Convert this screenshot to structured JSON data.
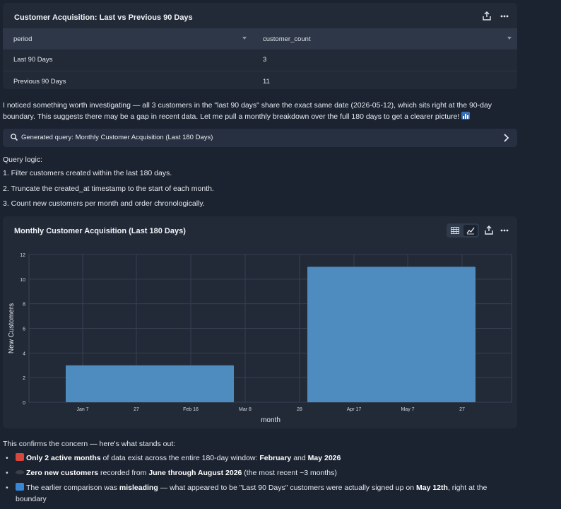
{
  "table_card": {
    "title": "Customer Acquisition: Last vs Previous 90 Days",
    "columns": [
      "period",
      "customer_count"
    ],
    "rows": [
      [
        "Last 90 Days",
        "3"
      ],
      [
        "Previous 90 Days",
        "11"
      ]
    ]
  },
  "message1": "I noticed something worth investigating — all 3 customers in the \"last 90 days\" share the exact same date (2026-05-12), which sits right at the 90-day boundary. This suggests there may be a gap in recent data. Let me pull a monthly breakdown over the full 180 days to get a clearer picture!",
  "query_bar": {
    "label": "Generated query: Monthly Customer Acquisition (Last 180 Days)"
  },
  "logic": {
    "title": "Query logic:",
    "steps": [
      "1. Filter customers created within the last 180 days.",
      "2. Truncate the created_at timestamp to the start of each month.",
      "3. Count new customers per month and order chronologically."
    ]
  },
  "chart_card": {
    "title": "Monthly Customer Acquisition (Last 180 Days)"
  },
  "chart_data": {
    "type": "bar",
    "title": "Monthly Customer Acquisition (Last 180 Days)",
    "xlabel": "month",
    "ylabel": "New Customers",
    "x_ticks": [
      "Jan 7",
      "27",
      "Feb 16",
      "Mar 8",
      "28",
      "Apr 17",
      "May 7",
      "27"
    ],
    "y_ticks": [
      0,
      2,
      4,
      6,
      8,
      10,
      12
    ],
    "ylim": [
      0,
      12
    ],
    "grid": true,
    "bar_color": "#4e8bbf",
    "bars": [
      {
        "category": "2026-02",
        "value": 3
      },
      {
        "category": "2026-05",
        "value": 11
      }
    ]
  },
  "confirm": "This confirms the concern — here's what stands out:",
  "points": [
    {
      "icon": "calendar-icon",
      "icon_color": "#d8473b",
      "parts": [
        [
          "b",
          "Only 2 active months"
        ],
        [
          "t",
          " of data exist across the entire 180-day window: "
        ],
        [
          "b",
          "February"
        ],
        [
          "t",
          " and "
        ],
        [
          "b",
          "May 2026"
        ]
      ]
    },
    {
      "icon": "hole-icon",
      "icon_color": "#3b3f47",
      "parts": [
        [
          "b",
          "Zero new customers"
        ],
        [
          "t",
          " recorded from "
        ],
        [
          "b",
          "June through August 2026"
        ],
        [
          "t",
          " (the most recent ~3 months)"
        ]
      ]
    },
    {
      "icon": "refresh-icon",
      "icon_color": "#3a86d6",
      "parts": [
        [
          "t",
          "The earlier comparison was "
        ],
        [
          "b",
          "misleading"
        ],
        [
          "t",
          " — what appeared to be \"Last 90 Days\" customers were actually signed up on "
        ],
        [
          "b",
          "May 12th"
        ],
        [
          "t",
          ", right at the boundary"
        ]
      ]
    }
  ]
}
